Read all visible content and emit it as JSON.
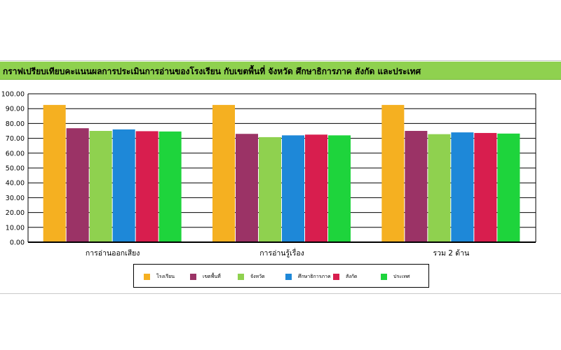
{
  "title": "กราฟเปรียบเทียบคะแนนผลการประเมินการอ่านของโรงเรียน กับเขตพื้นที่ จังหวัด ศึกษาธิการภาค สังกัด และประเทศ",
  "legend": [
    {
      "label": "โรงเรียน",
      "color": "#f5b021"
    },
    {
      "label": "เขตพื้นที่",
      "color": "#9b3366"
    },
    {
      "label": "จังหวัด",
      "color": "#8fd14f"
    },
    {
      "label": "ศึกษาธิการภาค",
      "color": "#1e88d8"
    },
    {
      "label": "สังกัด",
      "color": "#d81e4e"
    },
    {
      "label": "ประเทศ",
      "color": "#1ed43c"
    }
  ],
  "chart_data": {
    "type": "bar",
    "title": "กราฟเปรียบเทียบคะแนนผลการประเมินการอ่านของโรงเรียน กับเขตพื้นที่ จังหวัด ศึกษาธิการภาค สังกัด และประเทศ",
    "categories": [
      "การอ่านออกเสียง",
      "การอ่านรู้เรื่อง",
      "รวม 2 ด้าน"
    ],
    "ylim": [
      0,
      100
    ],
    "yticks": [
      "0.00",
      "10.00",
      "20.00",
      "30.00",
      "40.00",
      "50.00",
      "60.00",
      "70.00",
      "80.00",
      "90.00",
      "100.00"
    ],
    "grid": true,
    "legend_position": "bottom",
    "series": [
      {
        "name": "โรงเรียน",
        "color": "#f5b021",
        "values": [
          92.5,
          92.5,
          92.5
        ]
      },
      {
        "name": "เขตพื้นที่",
        "color": "#9b3366",
        "values": [
          76.8,
          73.0,
          75.0
        ]
      },
      {
        "name": "จังหวัด",
        "color": "#8fd14f",
        "values": [
          75.0,
          70.8,
          72.8
        ]
      },
      {
        "name": "ศึกษาธิการภาค",
        "color": "#1e88d8",
        "values": [
          76.0,
          72.0,
          74.0
        ]
      },
      {
        "name": "สังกัด",
        "color": "#d81e4e",
        "values": [
          74.8,
          72.5,
          73.6
        ]
      },
      {
        "name": "ประเทศ",
        "color": "#1ed43c",
        "values": [
          74.6,
          72.0,
          73.2
        ]
      }
    ]
  }
}
